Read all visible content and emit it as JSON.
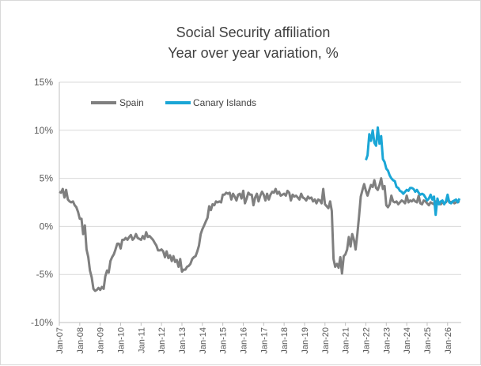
{
  "chart_data": {
    "type": "line",
    "title": "Social Security affiliation",
    "subtitle": "Year over year variation, %",
    "xlabel": "",
    "ylabel": "",
    "ylim": [
      -10,
      15
    ],
    "ytick_labels": [
      "-10%",
      "-5%",
      "0%",
      "5%",
      "10%",
      "15%"
    ],
    "ytick_values": [
      -10,
      -5,
      0,
      5,
      10,
      15
    ],
    "xtick_labels": [
      "Jan-07",
      "Jan-08",
      "Jan-09",
      "Jan-10",
      "Jan-11",
      "Jan-12",
      "Jan-13",
      "Jan-14",
      "Jan-15",
      "Jan-16",
      "Jan-17",
      "Jan-18",
      "Jan-19",
      "Jan-20",
      "Jan-21",
      "Jan-22",
      "Jan-23",
      "Jan-24",
      "Jan-25",
      "Jan-26"
    ],
    "x_start": "2007-01",
    "x_end": "2026-09",
    "grid": "horizontal",
    "legend_position": "top-left",
    "colors": {
      "Spain": "#7f7f7f",
      "Canary Islands": "#1aa6d6",
      "grid": "#d9d9d9",
      "axis": "#bfbfbf"
    },
    "series": [
      {
        "name": "Spain",
        "points": [
          [
            "2007-01",
            3.6
          ],
          [
            "2007-02",
            3.5
          ],
          [
            "2007-03",
            3.9
          ],
          [
            "2007-04",
            3.0
          ],
          [
            "2007-05",
            3.8
          ],
          [
            "2007-06",
            2.8
          ],
          [
            "2007-07",
            2.6
          ],
          [
            "2007-08",
            2.5
          ],
          [
            "2007-09",
            2.6
          ],
          [
            "2007-10",
            2.2
          ],
          [
            "2007-11",
            2.0
          ],
          [
            "2007-12",
            1.5
          ],
          [
            "2008-01",
            0.8
          ],
          [
            "2008-02",
            0.8
          ],
          [
            "2008-03",
            -0.8
          ],
          [
            "2008-04",
            0.1
          ],
          [
            "2008-05",
            -2.4
          ],
          [
            "2008-06",
            -3.2
          ],
          [
            "2008-07",
            -4.6
          ],
          [
            "2008-08",
            -5.3
          ],
          [
            "2008-09",
            -6.5
          ],
          [
            "2008-10",
            -6.7
          ],
          [
            "2008-11",
            -6.6
          ],
          [
            "2008-12",
            -6.4
          ],
          [
            "2009-01",
            -6.6
          ],
          [
            "2009-02",
            -6.3
          ],
          [
            "2009-03",
            -6.5
          ],
          [
            "2009-04",
            -5.2
          ],
          [
            "2009-05",
            -4.6
          ],
          [
            "2009-06",
            -4.8
          ],
          [
            "2009-07",
            -3.6
          ],
          [
            "2009-08",
            -3.2
          ],
          [
            "2009-09",
            -2.9
          ],
          [
            "2009-10",
            -2.4
          ],
          [
            "2009-11",
            -1.8
          ],
          [
            "2009-12",
            -1.8
          ],
          [
            "2010-01",
            -2.3
          ],
          [
            "2010-02",
            -1.4
          ],
          [
            "2010-03",
            -1.4
          ],
          [
            "2010-04",
            -1.2
          ],
          [
            "2010-05",
            -1.4
          ],
          [
            "2010-06",
            -1.1
          ],
          [
            "2010-07",
            -0.9
          ],
          [
            "2010-08",
            -1.4
          ],
          [
            "2010-09",
            -1.2
          ],
          [
            "2010-10",
            -0.8
          ],
          [
            "2010-11",
            -1.2
          ],
          [
            "2010-12",
            -1.3
          ],
          [
            "2011-01",
            -1.4
          ],
          [
            "2011-02",
            -1.0
          ],
          [
            "2011-03",
            -1.3
          ],
          [
            "2011-04",
            -0.6
          ],
          [
            "2011-05",
            -1.1
          ],
          [
            "2011-06",
            -1.0
          ],
          [
            "2011-07",
            -1.2
          ],
          [
            "2011-08",
            -1.4
          ],
          [
            "2011-09",
            -1.7
          ],
          [
            "2011-10",
            -2.0
          ],
          [
            "2011-11",
            -2.5
          ],
          [
            "2011-12",
            -2.5
          ],
          [
            "2012-01",
            -2.4
          ],
          [
            "2012-02",
            -2.6
          ],
          [
            "2012-03",
            -3.2
          ],
          [
            "2012-04",
            -2.6
          ],
          [
            "2012-05",
            -3.3
          ],
          [
            "2012-06",
            -3.0
          ],
          [
            "2012-07",
            -3.6
          ],
          [
            "2012-08",
            -3.1
          ],
          [
            "2012-09",
            -3.7
          ],
          [
            "2012-10",
            -3.5
          ],
          [
            "2012-11",
            -4.2
          ],
          [
            "2012-12",
            -3.4
          ],
          [
            "2013-01",
            -4.7
          ],
          [
            "2013-02",
            -4.5
          ],
          [
            "2013-03",
            -4.5
          ],
          [
            "2013-04",
            -4.2
          ],
          [
            "2013-05",
            -4.1
          ],
          [
            "2013-06",
            -3.9
          ],
          [
            "2013-07",
            -3.4
          ],
          [
            "2013-08",
            -3.2
          ],
          [
            "2013-09",
            -3.1
          ],
          [
            "2013-10",
            -2.6
          ],
          [
            "2013-11",
            -2.0
          ],
          [
            "2013-12",
            -0.8
          ],
          [
            "2014-01",
            -0.3
          ],
          [
            "2014-02",
            0.1
          ],
          [
            "2014-03",
            0.5
          ],
          [
            "2014-04",
            0.9
          ],
          [
            "2014-05",
            2.1
          ],
          [
            "2014-06",
            1.7
          ],
          [
            "2014-07",
            2.3
          ],
          [
            "2014-08",
            2.2
          ],
          [
            "2014-09",
            2.6
          ],
          [
            "2014-10",
            2.5
          ],
          [
            "2014-11",
            2.6
          ],
          [
            "2014-12",
            2.5
          ],
          [
            "2015-01",
            3.3
          ],
          [
            "2015-02",
            3.3
          ],
          [
            "2015-03",
            3.5
          ],
          [
            "2015-04",
            3.4
          ],
          [
            "2015-05",
            3.5
          ],
          [
            "2015-06",
            2.8
          ],
          [
            "2015-07",
            3.4
          ],
          [
            "2015-08",
            3.1
          ],
          [
            "2015-09",
            2.7
          ],
          [
            "2015-10",
            3.3
          ],
          [
            "2015-11",
            3.4
          ],
          [
            "2015-12",
            2.9
          ],
          [
            "2016-01",
            3.7
          ],
          [
            "2016-02",
            2.4
          ],
          [
            "2016-03",
            2.9
          ],
          [
            "2016-04",
            3.5
          ],
          [
            "2016-05",
            3.3
          ],
          [
            "2016-06",
            3.3
          ],
          [
            "2016-07",
            2.2
          ],
          [
            "2016-08",
            3.0
          ],
          [
            "2016-09",
            3.4
          ],
          [
            "2016-10",
            2.6
          ],
          [
            "2016-11",
            3.2
          ],
          [
            "2016-12",
            3.6
          ],
          [
            "2017-01",
            3.3
          ],
          [
            "2017-02",
            2.7
          ],
          [
            "2017-03",
            3.4
          ],
          [
            "2017-04",
            2.8
          ],
          [
            "2017-05",
            3.3
          ],
          [
            "2017-06",
            3.6
          ],
          [
            "2017-07",
            3.5
          ],
          [
            "2017-08",
            3.9
          ],
          [
            "2017-09",
            3.4
          ],
          [
            "2017-10",
            3.6
          ],
          [
            "2017-11",
            3.2
          ],
          [
            "2017-12",
            3.3
          ],
          [
            "2018-01",
            3.4
          ],
          [
            "2018-02",
            3.2
          ],
          [
            "2018-03",
            3.7
          ],
          [
            "2018-04",
            3.5
          ],
          [
            "2018-05",
            2.7
          ],
          [
            "2018-06",
            3.3
          ],
          [
            "2018-07",
            3.1
          ],
          [
            "2018-08",
            3.2
          ],
          [
            "2018-09",
            3.0
          ],
          [
            "2018-10",
            2.8
          ],
          [
            "2018-11",
            3.4
          ],
          [
            "2018-12",
            3.0
          ],
          [
            "2019-01",
            2.9
          ],
          [
            "2019-02",
            2.7
          ],
          [
            "2019-03",
            3.1
          ],
          [
            "2019-04",
            2.9
          ],
          [
            "2019-05",
            3.0
          ],
          [
            "2019-06",
            2.6
          ],
          [
            "2019-07",
            2.8
          ],
          [
            "2019-08",
            2.4
          ],
          [
            "2019-09",
            2.8
          ],
          [
            "2019-10",
            2.7
          ],
          [
            "2019-11",
            2.4
          ],
          [
            "2019-12",
            3.9
          ],
          [
            "2020-01",
            2.3
          ],
          [
            "2020-02",
            2.1
          ],
          [
            "2020-03",
            1.9
          ],
          [
            "2020-04",
            2.6
          ],
          [
            "2020-05",
            1.6
          ],
          [
            "2020-06",
            -3.4
          ],
          [
            "2020-07",
            -4.2
          ],
          [
            "2020-08",
            -3.9
          ],
          [
            "2020-09",
            -4.3
          ],
          [
            "2020-10",
            -3.2
          ],
          [
            "2020-11",
            -4.9
          ],
          [
            "2020-12",
            -3.1
          ],
          [
            "2021-01",
            -2.9
          ],
          [
            "2021-02",
            -2.4
          ],
          [
            "2021-03",
            -1.1
          ],
          [
            "2021-04",
            -2.1
          ],
          [
            "2021-05",
            -0.8
          ],
          [
            "2021-06",
            -1.4
          ],
          [
            "2021-07",
            -2.4
          ],
          [
            "2021-08",
            -0.8
          ],
          [
            "2021-09",
            1.0
          ],
          [
            "2021-10",
            3.1
          ],
          [
            "2021-11",
            3.8
          ],
          [
            "2021-12",
            4.4
          ],
          [
            "2022-01",
            3.7
          ],
          [
            "2022-02",
            3.2
          ],
          [
            "2022-03",
            3.8
          ],
          [
            "2022-04",
            4.3
          ],
          [
            "2022-05",
            4.1
          ],
          [
            "2022-06",
            4.8
          ],
          [
            "2022-07",
            4.0
          ],
          [
            "2022-08",
            3.8
          ],
          [
            "2022-09",
            4.3
          ],
          [
            "2022-10",
            5.0
          ],
          [
            "2022-11",
            3.9
          ],
          [
            "2022-12",
            4.2
          ],
          [
            "2023-01",
            2.2
          ],
          [
            "2023-02",
            2.0
          ],
          [
            "2023-03",
            2.3
          ],
          [
            "2023-04",
            3.2
          ],
          [
            "2023-05",
            2.6
          ],
          [
            "2023-06",
            2.5
          ],
          [
            "2023-07",
            2.6
          ],
          [
            "2023-08",
            2.3
          ],
          [
            "2023-09",
            2.5
          ],
          [
            "2023-10",
            2.7
          ],
          [
            "2023-11",
            2.6
          ],
          [
            "2023-12",
            2.4
          ],
          [
            "2024-01",
            3.2
          ],
          [
            "2024-02",
            2.5
          ],
          [
            "2024-03",
            2.7
          ],
          [
            "2024-04",
            2.6
          ],
          [
            "2024-05",
            2.8
          ],
          [
            "2024-06",
            2.6
          ],
          [
            "2024-07",
            2.5
          ],
          [
            "2024-08",
            3.2
          ],
          [
            "2024-09",
            2.4
          ],
          [
            "2024-10",
            2.3
          ],
          [
            "2024-11",
            2.7
          ],
          [
            "2024-12",
            2.6
          ],
          [
            "2025-01",
            2.4
          ],
          [
            "2025-02",
            2.2
          ],
          [
            "2025-03",
            2.5
          ],
          [
            "2025-04",
            2.4
          ],
          [
            "2025-05",
            2.3
          ],
          [
            "2025-06",
            2.6
          ],
          [
            "2025-07",
            2.5
          ],
          [
            "2025-08",
            2.4
          ],
          [
            "2025-09",
            2.3
          ],
          [
            "2025-10",
            2.5
          ],
          [
            "2025-11",
            2.4
          ],
          [
            "2025-12",
            2.5
          ],
          [
            "2026-01",
            2.8
          ],
          [
            "2026-02",
            2.6
          ],
          [
            "2026-03",
            2.5
          ],
          [
            "2026-04",
            2.6
          ],
          [
            "2026-05",
            2.4
          ],
          [
            "2026-06",
            2.5
          ],
          [
            "2026-07",
            2.6
          ],
          [
            "2026-08",
            2.5
          ]
        ]
      },
      {
        "name": "Canary Islands",
        "points": [
          [
            "2022-01",
            6.9
          ],
          [
            "2022-02",
            7.4
          ],
          [
            "2022-03",
            9.6
          ],
          [
            "2022-04",
            8.9
          ],
          [
            "2022-05",
            10.0
          ],
          [
            "2022-06",
            8.7
          ],
          [
            "2022-07",
            8.4
          ],
          [
            "2022-08",
            10.3
          ],
          [
            "2022-09",
            8.6
          ],
          [
            "2022-10",
            9.4
          ],
          [
            "2022-11",
            7.0
          ],
          [
            "2022-12",
            6.7
          ],
          [
            "2023-01",
            6.0
          ],
          [
            "2023-02",
            5.8
          ],
          [
            "2023-03",
            5.3
          ],
          [
            "2023-04",
            5.0
          ],
          [
            "2023-05",
            4.8
          ],
          [
            "2023-06",
            4.7
          ],
          [
            "2023-07",
            4.1
          ],
          [
            "2023-08",
            4.0
          ],
          [
            "2023-09",
            3.7
          ],
          [
            "2023-10",
            3.6
          ],
          [
            "2023-11",
            3.4
          ],
          [
            "2023-12",
            3.6
          ],
          [
            "2024-01",
            3.8
          ],
          [
            "2024-02",
            3.7
          ],
          [
            "2024-03",
            4.0
          ],
          [
            "2024-04",
            4.0
          ],
          [
            "2024-05",
            3.9
          ],
          [
            "2024-06",
            3.6
          ],
          [
            "2024-07",
            3.8
          ],
          [
            "2024-08",
            3.5
          ],
          [
            "2024-09",
            3.3
          ],
          [
            "2024-10",
            3.4
          ],
          [
            "2024-11",
            3.3
          ],
          [
            "2024-12",
            3.0
          ],
          [
            "2025-01",
            2.7
          ],
          [
            "2025-02",
            2.9
          ],
          [
            "2025-03",
            3.3
          ],
          [
            "2025-04",
            2.8
          ],
          [
            "2025-05",
            3.1
          ],
          [
            "2025-06",
            1.2
          ],
          [
            "2025-07",
            2.9
          ],
          [
            "2025-08",
            2.3
          ],
          [
            "2025-09",
            2.6
          ],
          [
            "2025-10",
            2.7
          ],
          [
            "2025-11",
            2.3
          ],
          [
            "2025-12",
            2.6
          ],
          [
            "2026-01",
            3.3
          ],
          [
            "2026-02",
            2.5
          ],
          [
            "2026-03",
            2.4
          ],
          [
            "2026-04",
            2.6
          ],
          [
            "2026-05",
            2.7
          ],
          [
            "2026-06",
            2.8
          ],
          [
            "2026-07",
            2.5
          ],
          [
            "2026-08",
            2.9
          ]
        ]
      }
    ]
  }
}
